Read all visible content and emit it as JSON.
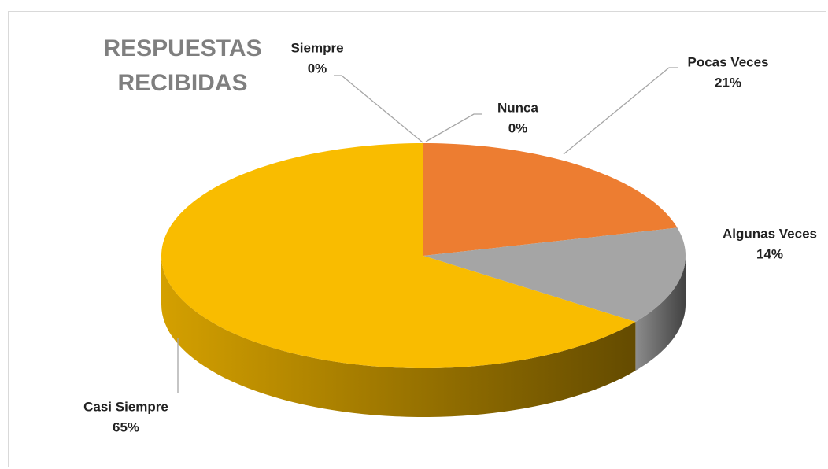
{
  "chart_data": {
    "type": "pie3d",
    "title": "RESPUESTAS RECIBIDAS",
    "categories": [
      "Nunca",
      "Pocas Veces",
      "Algunas Veces",
      "Casi Siempre",
      "Siempre"
    ],
    "values": [
      0,
      21,
      14,
      65,
      0
    ],
    "value_labels": [
      "0%",
      "21%",
      "14%",
      "65%",
      "0%"
    ],
    "colors": [
      "#5B9BD5",
      "#ED7D31",
      "#A5A5A5",
      "#F9BC00",
      "#4472C4"
    ]
  }
}
